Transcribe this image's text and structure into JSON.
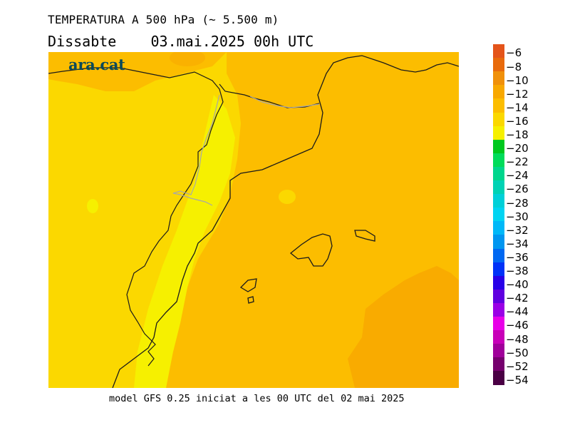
{
  "header": {
    "title": "TEMPERATURA A 500 hPa (~ 5.500 m)",
    "subtitle": "Dissabte    03.mai.2025 00h UTC"
  },
  "logo": {
    "text": "ara.cat"
  },
  "footer": {
    "text": "model GFS 0.25 iniciat a les 00 UTC del 02 mai 2025"
  },
  "legend": {
    "levels": [
      {
        "label": "−6",
        "color": "#e4541a"
      },
      {
        "label": "−8",
        "color": "#e86a0c"
      },
      {
        "label": "−10",
        "color": "#f0900a"
      },
      {
        "label": "−12",
        "color": "#f8a800"
      },
      {
        "label": "−14",
        "color": "#fcbd00"
      },
      {
        "label": "−16",
        "color": "#fbd800"
      },
      {
        "label": "−18",
        "color": "#f6f000"
      },
      {
        "label": "−20",
        "color": "#00c81e"
      },
      {
        "label": "−22",
        "color": "#00dc5a"
      },
      {
        "label": "−24",
        "color": "#00d68c"
      },
      {
        "label": "−26",
        "color": "#00d2b4"
      },
      {
        "label": "−28",
        "color": "#00d0d8"
      },
      {
        "label": "−30",
        "color": "#00d4f2"
      },
      {
        "label": "−32",
        "color": "#00b8f8"
      },
      {
        "label": "−34",
        "color": "#0096f0"
      },
      {
        "label": "−36",
        "color": "#0068f2"
      },
      {
        "label": "−38",
        "color": "#0032f8"
      },
      {
        "label": "−40",
        "color": "#2800e8"
      },
      {
        "label": "−42",
        "color": "#6000e0"
      },
      {
        "label": "−44",
        "color": "#9a00e6"
      },
      {
        "label": "−46",
        "color": "#e800e8"
      },
      {
        "label": "−48",
        "color": "#c800b8"
      },
      {
        "label": "−50",
        "color": "#a0009a"
      },
      {
        "label": "−52",
        "color": "#76006e"
      },
      {
        "label": "−54",
        "color": "#4a0044"
      }
    ]
  }
}
